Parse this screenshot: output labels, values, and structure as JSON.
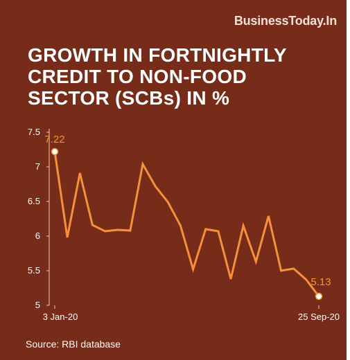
{
  "brand": "BusinessToday.In",
  "title_lines": [
    "GROWTH IN FORTNIGHTLY",
    "CREDIT TO NON-FOOD",
    "SECTOR (SCBs) IN %"
  ],
  "source": "Source: RBI database",
  "colors": {
    "background": "#772c19",
    "line": "#f6913a",
    "text": "#ffffff",
    "axis": "#f0c8b4"
  },
  "chart_data": {
    "type": "line",
    "title": "GROWTH IN FORTNIGHTLY CREDIT TO NON-FOOD SECTOR (SCBs) IN %",
    "xlabel": "",
    "ylabel": "",
    "x_tick_labels": [
      "3 Jan-20",
      "25 Sep-20"
    ],
    "y_ticks": [
      "5",
      "5.5",
      "6",
      "6.5",
      "7",
      "7.5"
    ],
    "ylim": [
      5,
      7.5
    ],
    "grid": false,
    "series": [
      {
        "values": [
          7.22,
          5.98,
          6.91,
          6.16,
          6.07,
          6.09,
          6.08,
          7.04,
          6.72,
          6.49,
          6.15,
          5.52,
          6.1,
          6.07,
          5.38,
          6.15,
          5.63,
          6.29,
          5.5,
          5.53,
          5.37,
          5.13
        ]
      }
    ],
    "annotations": [
      {
        "index": 0,
        "text": "7.22"
      },
      {
        "index": 21,
        "text": "5.13"
      }
    ]
  }
}
